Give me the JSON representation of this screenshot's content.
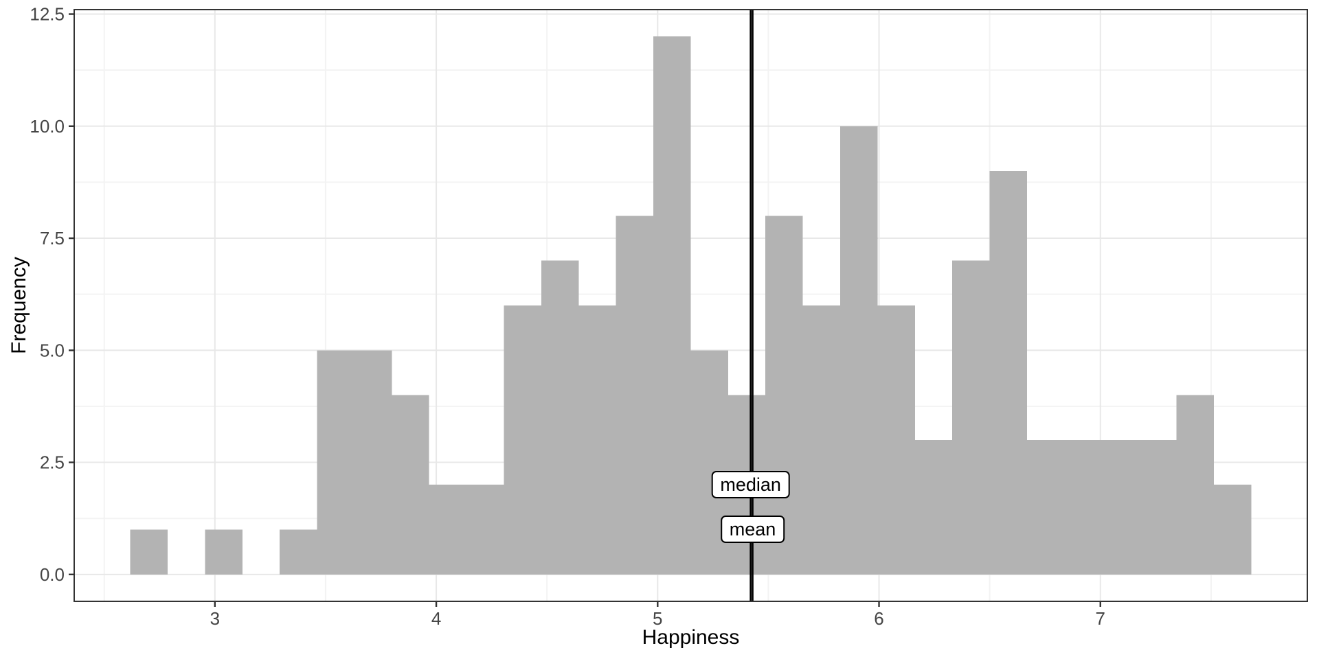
{
  "chart": {
    "x_axis": {
      "title": "Happiness",
      "tick_labels": [
        "3",
        "4",
        "5",
        "6",
        "7"
      ],
      "tick_values": [
        3,
        4,
        5,
        6,
        7
      ],
      "minor_values": [
        2.5,
        3.5,
        4.5,
        5.5,
        6.5,
        7.5
      ]
    },
    "y_axis": {
      "title": "Frequency",
      "tick_labels": [
        "0.0",
        "2.5",
        "5.0",
        "7.5",
        "10.0",
        "12.5"
      ],
      "tick_values": [
        0,
        2.5,
        5,
        7.5,
        10,
        12.5
      ],
      "minor_values": [
        1.25,
        3.75,
        6.25,
        8.75,
        11.25
      ]
    },
    "annotations": {
      "median_label": "median",
      "mean_label": "mean"
    },
    "colors": {
      "bar_fill": "#b3b3b3",
      "panel_border": "#333333",
      "grid_major": "#e8e8e8",
      "grid_minor": "#f3f3f3",
      "tick_mark": "#333333",
      "tick_text": "#454545",
      "title_text": "#000000",
      "reference_line": "#000000",
      "background": "#ffffff"
    }
  },
  "chart_data": {
    "type": "bar",
    "subtype": "histogram",
    "title": "",
    "xlabel": "Happiness",
    "ylabel": "Frequency",
    "bin_width": 0.1688,
    "bin_edges": [
      2.6176,
      2.7864,
      2.9552,
      3.124,
      3.2928,
      3.4615,
      3.6303,
      3.7991,
      3.9679,
      4.1367,
      4.3055,
      4.4743,
      4.6431,
      4.8119,
      4.9807,
      5.1495,
      5.3183,
      5.487,
      5.6558,
      5.8246,
      5.9934,
      6.1622,
      6.331,
      6.4998,
      6.6686,
      6.8374,
      7.0062,
      7.175,
      7.3438,
      7.5125,
      7.6813
    ],
    "counts": [
      1,
      0,
      1,
      0,
      1,
      5,
      5,
      4,
      2,
      2,
      6,
      7,
      6,
      8,
      12,
      5,
      4,
      8,
      6,
      10,
      6,
      3,
      7,
      9,
      3,
      3,
      3,
      3,
      4,
      2
    ],
    "n_total": 136,
    "reference_lines": [
      {
        "label": "median",
        "value": 5.42
      },
      {
        "label": "mean",
        "value": 5.429
      }
    ],
    "xlim": [
      2.3644,
      7.9348
    ],
    "ylim": [
      -0.6,
      12.6
    ],
    "x_ticks": [
      3,
      4,
      5,
      6,
      7
    ],
    "y_ticks": [
      0,
      2.5,
      5,
      7.5,
      10,
      12.5
    ],
    "grid": true,
    "legend": false
  }
}
